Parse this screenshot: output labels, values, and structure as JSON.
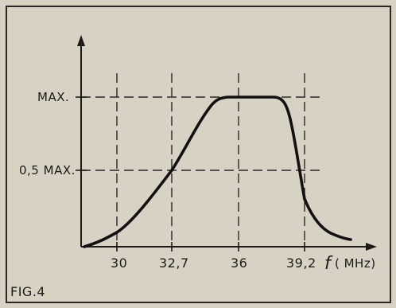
{
  "figure": {
    "caption": "FIG.4",
    "x_axis_label": "f",
    "x_axis_unit": "( MHz)",
    "y_labels": {
      "max": "MAX.",
      "half": "0,5 MAX."
    },
    "x_ticks": [
      "30",
      "32,7",
      "36",
      "39,2"
    ]
  },
  "chart_data": {
    "type": "line",
    "title": "",
    "xlabel": "f( MHz)",
    "ylabel": "",
    "x_ticks": [
      30,
      32.7,
      36,
      39.2
    ],
    "y_ticks": [
      {
        "value": 0.5,
        "label": "0,5 MAX."
      },
      {
        "value": 1.0,
        "label": "MAX."
      }
    ],
    "series": [
      {
        "points": [
          [
            28.8,
            0.0
          ],
          [
            30.0,
            0.09
          ],
          [
            31.5,
            0.28
          ],
          [
            32.7,
            0.5
          ],
          [
            34.0,
            0.79
          ],
          [
            34.7,
            0.95
          ],
          [
            35.5,
            1.0
          ],
          [
            37.5,
            1.0
          ],
          [
            38.0,
            0.94
          ],
          [
            38.7,
            0.62
          ],
          [
            39.2,
            0.31
          ],
          [
            40.0,
            0.14
          ],
          [
            40.8,
            0.08
          ],
          [
            41.3,
            0.05
          ]
        ]
      }
    ]
  }
}
